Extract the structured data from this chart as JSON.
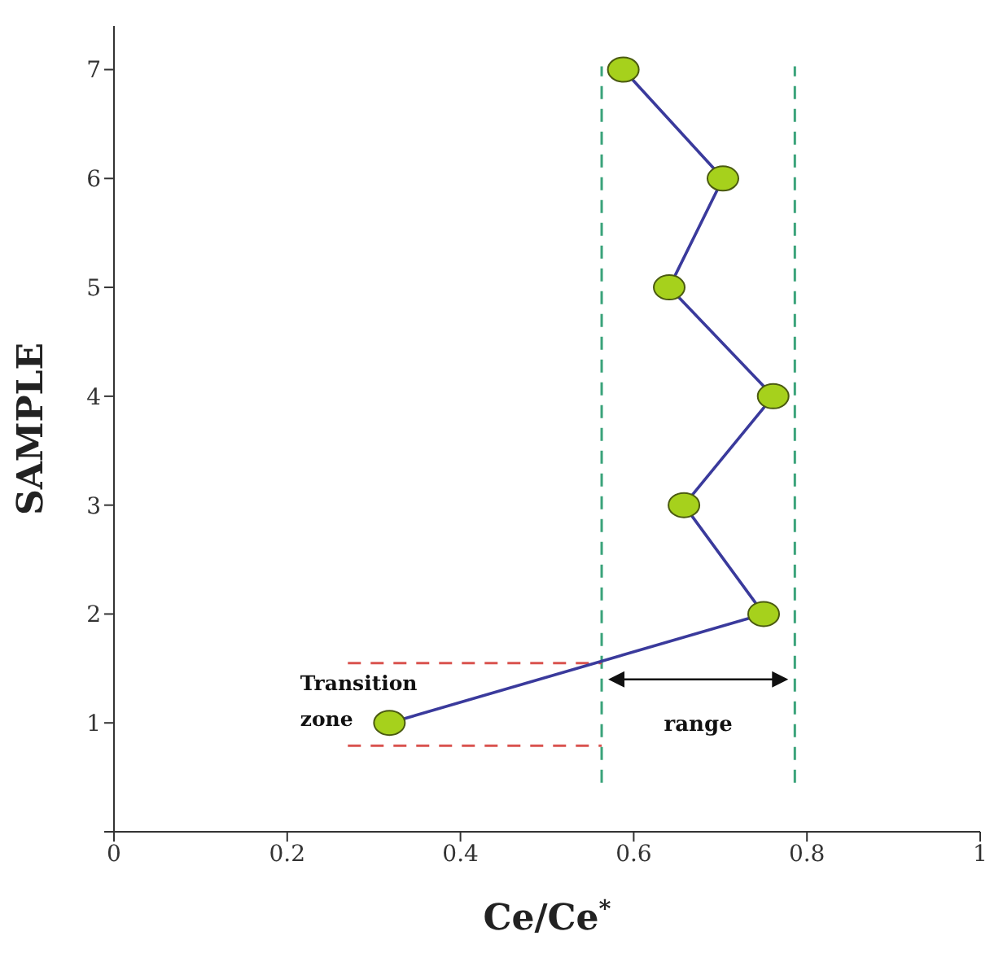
{
  "chart_data": {
    "type": "scatter",
    "xlabel": "Ce/Ce$^{*}$",
    "ylabel": "SAMPLE",
    "series": [
      {
        "type": "line",
        "color": "#3a3a9c",
        "colors": [
          "#a6d11c",
          "#a6d11c",
          "#a6d11c",
          "#a6d11c",
          "#a6d11c",
          "#a6d11c",
          "#a6d11c"
        ],
        "x": [
          0.318,
          0.75,
          0.658,
          0.761,
          0.641,
          0.703,
          0.588
        ],
        "values": [
          1,
          2,
          3,
          4,
          5,
          6,
          7
        ]
      }
    ],
    "marker": "circle",
    "xlim": [
      0,
      1
    ],
    "xticks": [
      0,
      0.2,
      0.4,
      0.6,
      0.8,
      1
    ],
    "ylim": [
      0,
      7.4
    ],
    "yticks": [
      {
        "value": 0,
        "label": null
      },
      1,
      2,
      3,
      4,
      5,
      6,
      7
    ],
    "ref_lines": [
      {
        "axis": "x",
        "value": 0.563,
        "color": "#3aa37a",
        "line_style": "dashed"
      },
      {
        "axis": "x",
        "value": 0.786,
        "color": "#3aa37a",
        "line_style": "dashed"
      },
      {
        "axis": "y",
        "value": 1.55,
        "color": "#d9534f",
        "line_style": "dashed"
      },
      {
        "axis": "y",
        "value": 0.79,
        "color": "#d9534f",
        "line_style": "dashed"
      }
    ],
    "annotations": [
      "Transition zone",
      "range"
    ],
    "grid": false,
    "legend": false
  }
}
